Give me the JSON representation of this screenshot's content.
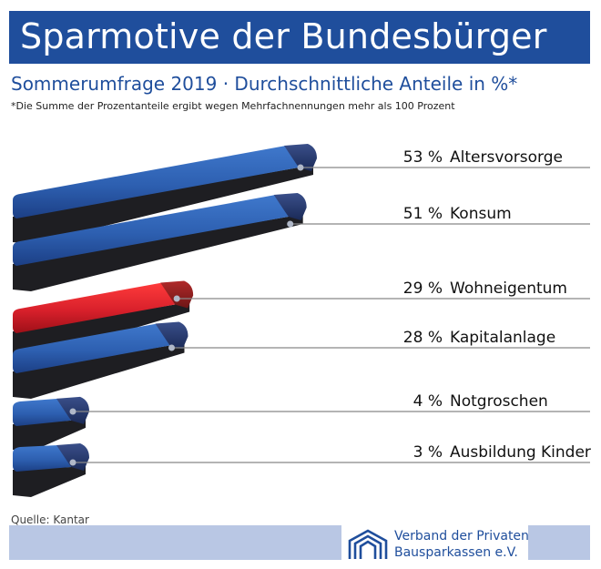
{
  "header": {
    "title": "Sparmotive der Bundesbürger",
    "subtitle": "Sommerumfrage 2019 · Durchschnittliche Anteile in %*",
    "footnote": "*Die Summe der Prozentanteile ergibt wegen Mehrfachnennungen mehr als 100 Prozent"
  },
  "chart_data": {
    "type": "bar",
    "title": "Sparmotive der Bundesbürger",
    "subtitle": "Sommerumfrage 2019 · Durchschnittliche Anteile in %*",
    "unit": "%",
    "orientation": "horizontal",
    "categories": [
      "Altersvorsorge",
      "Konsum",
      "Wohneigentum",
      "Kapitalanlage",
      "Notgroschen",
      "Ausbildung Kinder"
    ],
    "values": [
      53,
      51,
      29,
      28,
      4,
      3
    ],
    "value_labels": [
      "53 %",
      "51 %",
      "29 %",
      "28 %",
      "4 %",
      "3 %"
    ],
    "highlight_category": "Wohneigentum",
    "colors": {
      "bar": "#2d5fb0",
      "highlight": "#d8202b",
      "end": "#24376b",
      "leader": "#888888"
    }
  },
  "footer": {
    "source": "Quelle: Kantar",
    "org_line1": "Verband der Privaten",
    "org_line2": "Bausparkassen e.V."
  }
}
